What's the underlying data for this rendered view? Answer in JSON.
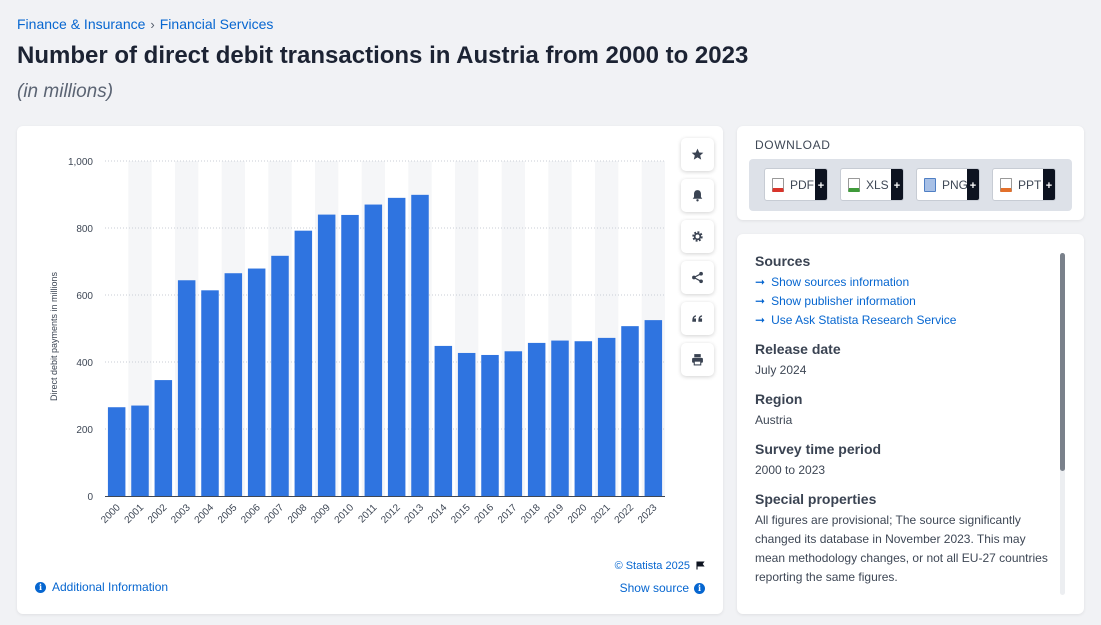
{
  "breadcrumb": {
    "category": "Finance & Insurance",
    "subcategory": "Financial Services"
  },
  "page": {
    "title": "Number of direct debit transactions in Austria from 2000 to 2023",
    "subtitle": "(in millions)"
  },
  "chart_data": {
    "type": "bar",
    "title": "",
    "xlabel": "",
    "ylabel": "Direct debit payments in millions",
    "ylim": [
      0,
      1000
    ],
    "yticks": [
      0,
      200,
      400,
      600,
      800,
      1000
    ],
    "ytick_labels": [
      "0",
      "200",
      "400",
      "600",
      "800",
      "1,000"
    ],
    "grid": true,
    "bar_color": "#2f74e0",
    "categories": [
      "2000",
      "2001",
      "2002",
      "2003",
      "2004",
      "2005",
      "2006",
      "2007",
      "2008",
      "2009",
      "2010",
      "2011",
      "2012",
      "2013",
      "2014",
      "2015",
      "2016",
      "2017",
      "2018",
      "2019",
      "2020",
      "2021",
      "2022",
      "2023"
    ],
    "values": [
      265,
      270,
      346,
      644,
      614,
      665,
      679,
      717,
      792,
      840,
      839,
      870,
      890,
      899,
      448,
      427,
      421,
      432,
      457,
      464,
      462,
      472,
      507,
      525
    ]
  },
  "chart_footer": {
    "copyright": "© Statista 2025",
    "show_source": "Show source",
    "additional_info": "Additional Information"
  },
  "toolbar": {
    "icons": [
      "star-icon",
      "bell-icon",
      "gear-icon",
      "share-icon",
      "quote-icon",
      "print-icon"
    ]
  },
  "download": {
    "title": "DOWNLOAD",
    "buttons": [
      {
        "label": "PDF",
        "color": "#d9342b"
      },
      {
        "label": "XLS",
        "color": "#3f9b3a"
      },
      {
        "label": "PNG",
        "color": "#4f7fc4"
      },
      {
        "label": "PPT",
        "color": "#e3702b"
      }
    ]
  },
  "info": {
    "sources_heading": "Sources",
    "links": [
      "Show sources information",
      "Show publisher information",
      "Use Ask Statista Research Service"
    ],
    "release_heading": "Release date",
    "release_value": "July 2024",
    "region_heading": "Region",
    "region_value": "Austria",
    "survey_heading": "Survey time period",
    "survey_value": "2000 to 2023",
    "special_heading": "Special properties",
    "special_value": "All figures are provisional; The source significantly changed its database in November 2023. This may mean methodology changes, or not all EU-27 countries reporting the same figures."
  }
}
